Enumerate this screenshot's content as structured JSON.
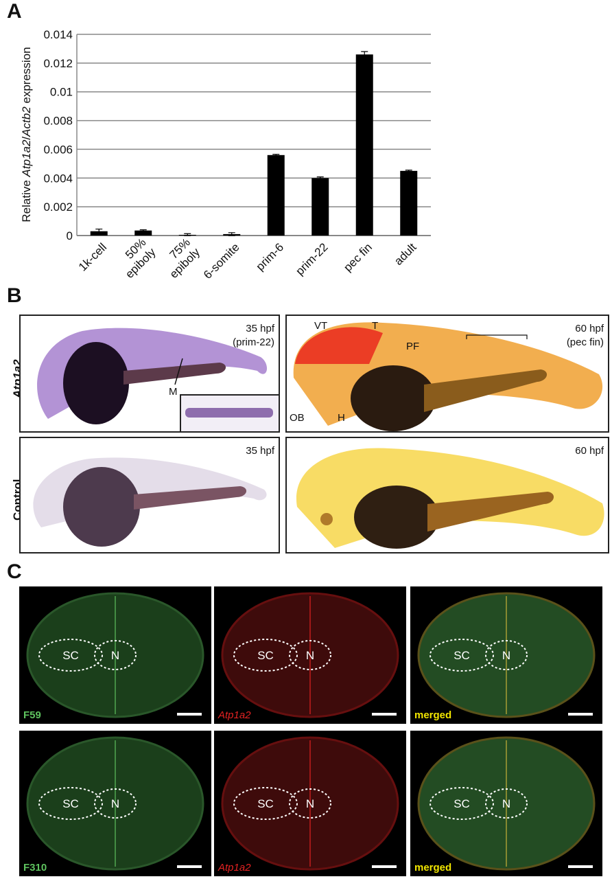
{
  "panels": {
    "a": "A",
    "b": "B",
    "c": "C"
  },
  "chart_data": {
    "type": "bar",
    "ylabel_prefix": "Relative ",
    "ylabel_gene1": "Atp1a2",
    "ylabel_sep": "/",
    "ylabel_gene2": "Actb2",
    "ylabel_suffix": " expression",
    "ylim": [
      0,
      0.014
    ],
    "yticks": [
      "0",
      "0.002",
      "0.004",
      "0.006",
      "0.008",
      "0.01",
      "0.012",
      "0.014"
    ],
    "ytick_values": [
      0,
      0.002,
      0.004,
      0.006,
      0.008,
      0.01,
      0.012,
      0.014
    ],
    "categories": [
      "1k-cell",
      "50% epiboly",
      "75% epiboly",
      "6-somite",
      "prim-6",
      "prim-22",
      "pec fin",
      "adult"
    ],
    "category_lines": [
      [
        "1k-cell"
      ],
      [
        "50%",
        "epiboly"
      ],
      [
        "75%",
        "epiboly"
      ],
      [
        "6-somite"
      ],
      [
        "prim-6"
      ],
      [
        "prim-22"
      ],
      [
        "pec fin"
      ],
      [
        "adult"
      ]
    ],
    "values": [
      0.0003,
      0.00035,
      5e-05,
      0.0001,
      0.0056,
      0.004,
      0.0126,
      0.0045
    ],
    "errors": [
      0.00015,
      5e-05,
      8e-05,
      0.0001,
      5e-05,
      8e-05,
      0.0002,
      5e-05
    ],
    "grid": true,
    "bar_color": "#000000",
    "grid_color": "#888888"
  },
  "panel_b": {
    "row_atp": "Atp1a2",
    "row_control": "Control",
    "tl_stage": "35 hpf",
    "tl_sub": "(prim-22)",
    "tr_stage": "60 hpf",
    "tr_sub": "(pec fin)",
    "bl_stage": "35 hpf",
    "br_stage": "60 hpf",
    "annot_m": "M",
    "annot_vt": "VT",
    "annot_t": "T",
    "annot_pf": "PF",
    "annot_ob": "OB",
    "annot_h": "H"
  },
  "panel_c": {
    "sc": "SC",
    "n": "N",
    "r1_green": "F59",
    "r2_green": "F310",
    "red": "Atp1a2",
    "merged": "merged",
    "green_color": "#5ec25e",
    "red_color": "#e32222",
    "merged_color": "#f2e600"
  }
}
